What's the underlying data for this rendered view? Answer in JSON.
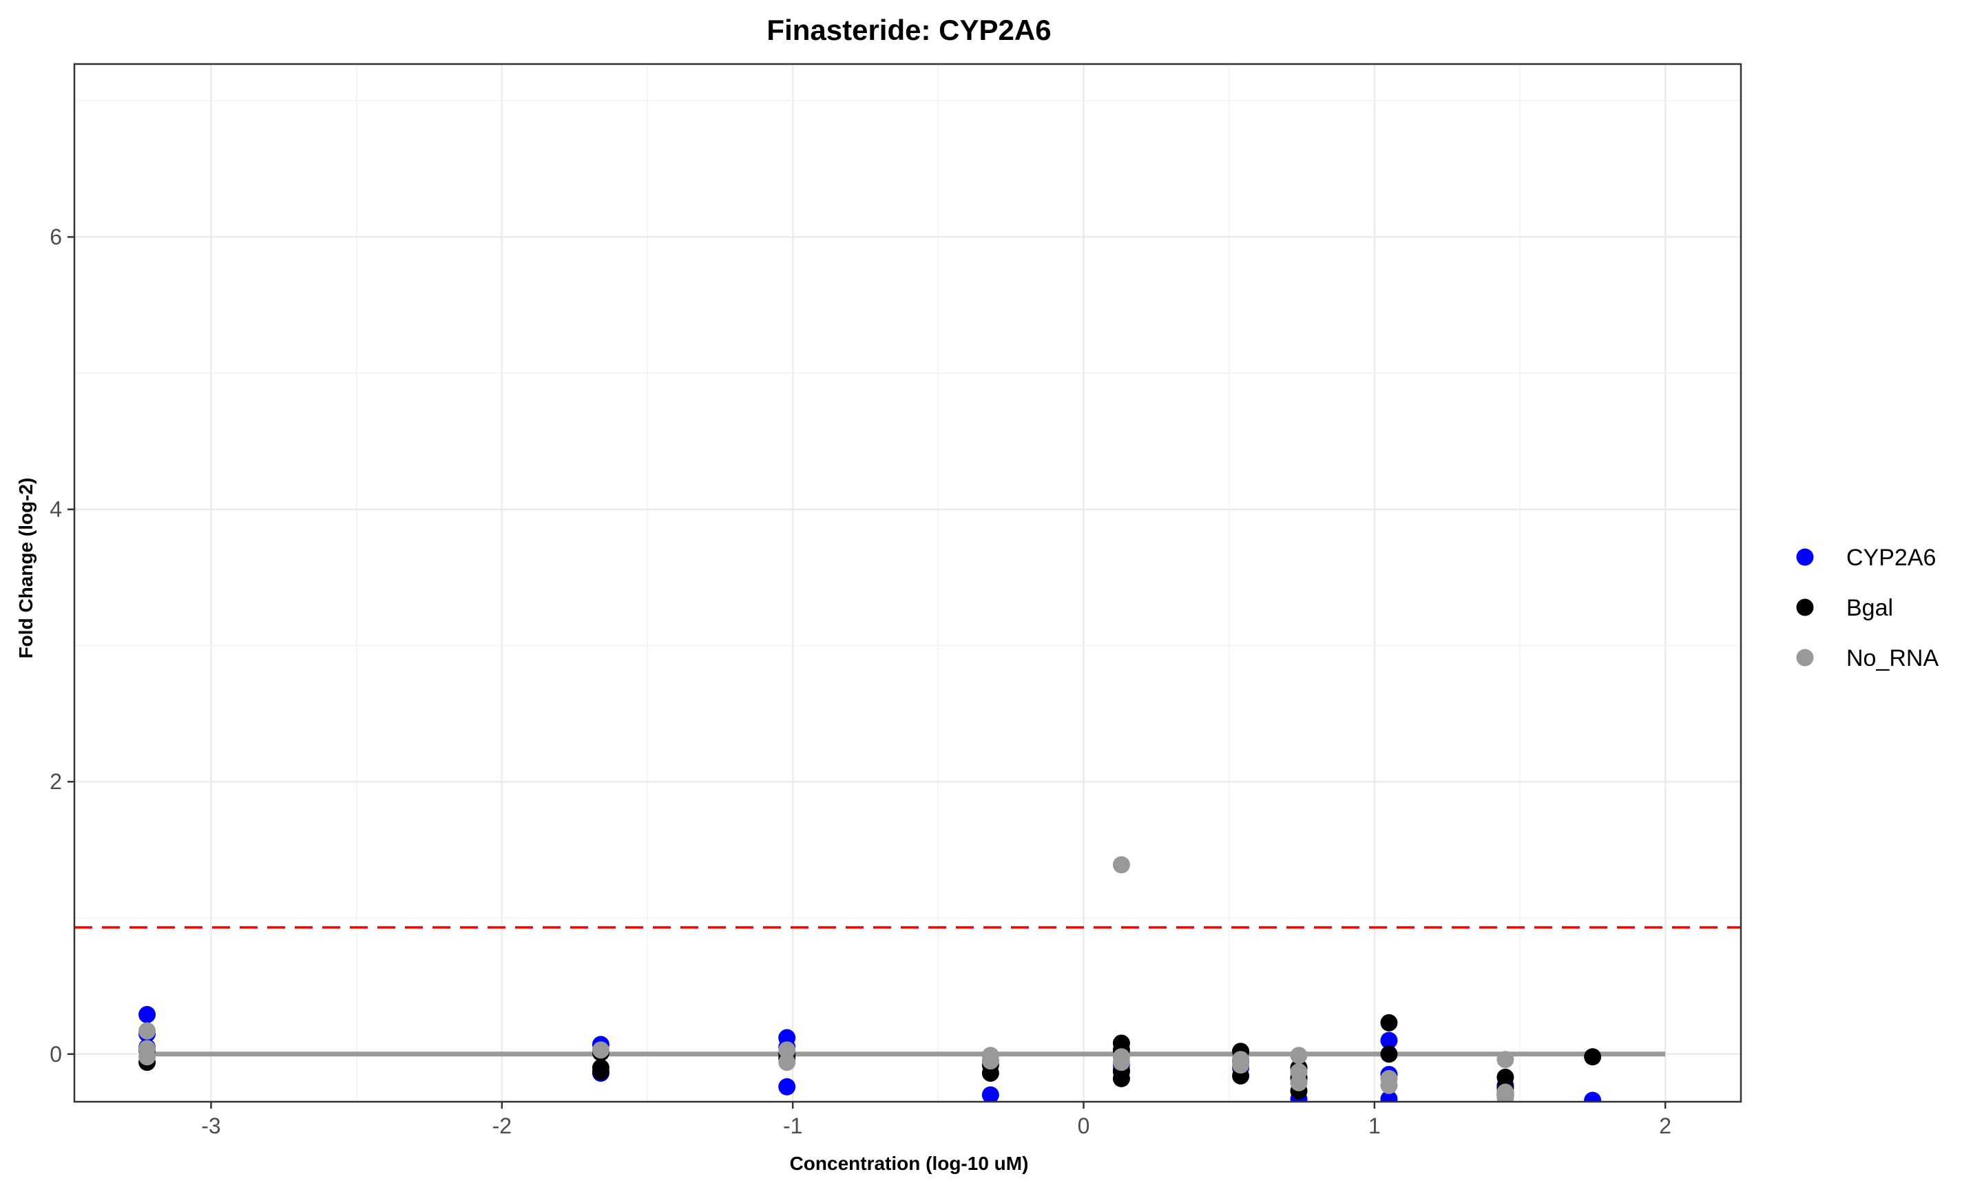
{
  "chart_data": {
    "type": "scatter",
    "title": "Finasteride: CYP2A6",
    "xlabel": "Concentration (log-10 uM)",
    "ylabel": "Fold Change (log-2)",
    "xlim": [
      -3.47,
      2.26
    ],
    "ylim": [
      -0.35,
      7.27
    ],
    "x_ticks": [
      -3,
      -2,
      -1,
      0,
      1,
      2
    ],
    "y_ticks": [
      0,
      2,
      4,
      6
    ],
    "x_tick_labels": [
      "-3",
      "-2",
      "-1",
      "0",
      "1",
      "2"
    ],
    "y_tick_labels": [
      "0",
      "2",
      "4",
      "6"
    ],
    "grid": true,
    "legend_position": "right",
    "threshold_line": {
      "y": 0.93,
      "color": "#ff0000",
      "style": "dashed"
    },
    "baseline": {
      "y": 0,
      "x_range": [
        -3.22,
        2.0
      ],
      "color": "#999999"
    },
    "series": [
      {
        "name": "CYP2A6",
        "color": "#0000ff",
        "points": [
          [
            -3.22,
            0.29
          ],
          [
            -3.22,
            0.15
          ],
          [
            -3.22,
            0.05
          ],
          [
            -1.66,
            0.07
          ],
          [
            -1.66,
            -0.14
          ],
          [
            -1.02,
            0.12
          ],
          [
            -1.02,
            0.05
          ],
          [
            -1.02,
            -0.24
          ],
          [
            -0.32,
            -0.3
          ],
          [
            -0.32,
            -0.05
          ],
          [
            0.13,
            -0.08
          ],
          [
            0.13,
            -0.13
          ],
          [
            0.54,
            -0.1
          ],
          [
            0.74,
            -0.33
          ],
          [
            0.74,
            -0.17
          ],
          [
            1.05,
            0.1
          ],
          [
            1.05,
            -0.15
          ],
          [
            1.05,
            -0.33
          ],
          [
            1.45,
            -0.23
          ],
          [
            1.45,
            -0.3
          ],
          [
            1.75,
            -0.34
          ]
        ]
      },
      {
        "name": "Bgal",
        "color": "#000000",
        "points": [
          [
            -3.22,
            -0.06
          ],
          [
            -3.22,
            0.03
          ],
          [
            -1.66,
            -0.1
          ],
          [
            -1.66,
            -0.13
          ],
          [
            -1.66,
            0.01
          ],
          [
            -1.02,
            -0.03
          ],
          [
            -1.02,
            0.0
          ],
          [
            -0.32,
            -0.14
          ],
          [
            -0.32,
            -0.08
          ],
          [
            0.13,
            0.08
          ],
          [
            0.13,
            0.03
          ],
          [
            0.13,
            -0.12
          ],
          [
            0.13,
            -0.18
          ],
          [
            0.54,
            0.02
          ],
          [
            0.54,
            -0.16
          ],
          [
            0.54,
            -0.05
          ],
          [
            0.74,
            -0.1
          ],
          [
            0.74,
            -0.18
          ],
          [
            0.74,
            -0.27
          ],
          [
            1.05,
            0.23
          ],
          [
            1.05,
            0.0
          ],
          [
            1.45,
            -0.17
          ],
          [
            1.45,
            -0.25
          ],
          [
            1.45,
            -0.28
          ],
          [
            1.75,
            -0.02
          ]
        ]
      },
      {
        "name": "No_RNA",
        "color": "#999999",
        "points": [
          [
            -3.22,
            0.17
          ],
          [
            -3.22,
            0.04
          ],
          [
            -3.22,
            -0.02
          ],
          [
            -1.66,
            0.03
          ],
          [
            -1.02,
            0.03
          ],
          [
            -1.02,
            -0.06
          ],
          [
            -0.32,
            -0.01
          ],
          [
            -0.32,
            -0.05
          ],
          [
            0.13,
            1.39
          ],
          [
            0.13,
            -0.02
          ],
          [
            0.13,
            -0.06
          ],
          [
            0.54,
            -0.04
          ],
          [
            0.54,
            -0.08
          ],
          [
            0.74,
            -0.01
          ],
          [
            0.74,
            -0.13
          ],
          [
            0.74,
            -0.21
          ],
          [
            1.05,
            -0.18
          ],
          [
            1.05,
            -0.23
          ],
          [
            1.45,
            -0.04
          ],
          [
            1.45,
            -0.28
          ],
          [
            1.45,
            -0.32
          ]
        ]
      }
    ]
  }
}
